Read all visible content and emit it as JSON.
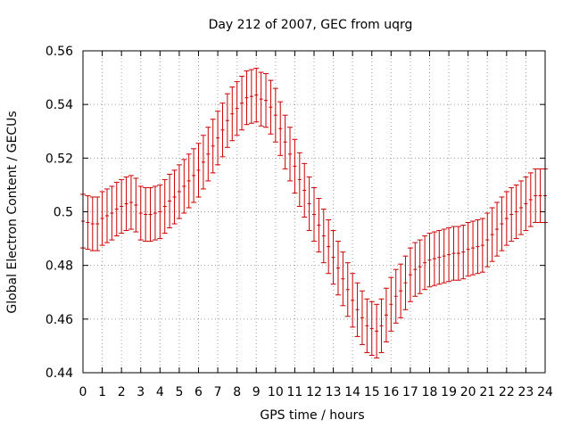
{
  "chart_data": {
    "type": "scatter",
    "title": "Day 212 of 2007, GEC from uqrg",
    "xlabel": "GPS time / hours",
    "ylabel": "Global Electron Content / GECUs",
    "xlim": [
      0,
      24
    ],
    "ylim": [
      0.44,
      0.56
    ],
    "x_ticks": [
      "0",
      "1",
      "2",
      "3",
      "4",
      "5",
      "6",
      "7",
      "8",
      "9",
      "10",
      "11",
      "12",
      "13",
      "14",
      "15",
      "16",
      "17",
      "18",
      "19",
      "20",
      "21",
      "22",
      "23",
      "24"
    ],
    "y_ticks": [
      "0.44",
      "0.46",
      "0.48",
      "0.5",
      "0.52",
      "0.54",
      "0.56"
    ],
    "grid": true,
    "error_bar_color": "#cc0000",
    "series": [
      {
        "x": [
          0,
          0.25,
          0.5,
          0.75,
          1,
          1.25,
          1.5,
          1.75,
          2,
          2.25,
          2.5,
          2.75,
          3,
          3.25,
          3.5,
          3.75,
          4,
          4.25,
          4.5,
          4.75,
          5,
          5.25,
          5.5,
          5.75,
          6,
          6.25,
          6.5,
          6.75,
          7,
          7.25,
          7.5,
          7.75,
          8,
          8.25,
          8.5,
          8.75,
          9,
          9.25,
          9.5,
          9.75,
          10,
          10.25,
          10.5,
          10.75,
          11,
          11.25,
          11.5,
          11.75,
          12,
          12.25,
          12.5,
          12.75,
          13,
          13.25,
          13.5,
          13.75,
          14,
          14.25,
          14.5,
          14.75,
          15,
          15.25,
          15.5,
          15.75,
          16,
          16.25,
          16.5,
          16.75,
          17,
          17.25,
          17.5,
          17.75,
          18,
          18.25,
          18.5,
          18.75,
          19,
          19.25,
          19.5,
          19.75,
          20,
          20.25,
          20.5,
          20.75,
          21,
          21.25,
          21.5,
          21.75,
          22,
          22.25,
          22.5,
          22.75,
          23,
          23.25,
          23.5,
          23.75,
          24
        ],
        "y": [
          0.4965,
          0.496,
          0.4955,
          0.4955,
          0.4975,
          0.4985,
          0.4995,
          0.501,
          0.502,
          0.503,
          0.5035,
          0.5025,
          0.4995,
          0.499,
          0.499,
          0.4995,
          0.5,
          0.502,
          0.504,
          0.5055,
          0.5075,
          0.5095,
          0.5115,
          0.5135,
          0.5155,
          0.5185,
          0.5215,
          0.5245,
          0.5275,
          0.5305,
          0.534,
          0.5365,
          0.5385,
          0.5405,
          0.5425,
          0.543,
          0.5435,
          0.542,
          0.5415,
          0.539,
          0.536,
          0.531,
          0.526,
          0.5215,
          0.517,
          0.512,
          0.508,
          0.503,
          0.499,
          0.495,
          0.491,
          0.487,
          0.483,
          0.479,
          0.475,
          0.471,
          0.467,
          0.4635,
          0.4605,
          0.4575,
          0.4565,
          0.4555,
          0.4575,
          0.4615,
          0.4655,
          0.4685,
          0.4705,
          0.4735,
          0.4765,
          0.4785,
          0.4795,
          0.481,
          0.482,
          0.4825,
          0.483,
          0.4835,
          0.484,
          0.4845,
          0.4845,
          0.485,
          0.486,
          0.4865,
          0.487,
          0.4875,
          0.4895,
          0.4915,
          0.4935,
          0.4955,
          0.4975,
          0.499,
          0.5,
          0.5015,
          0.503,
          0.5045,
          0.506,
          0.506,
          0.506
        ],
        "error": 0.01
      }
    ]
  }
}
